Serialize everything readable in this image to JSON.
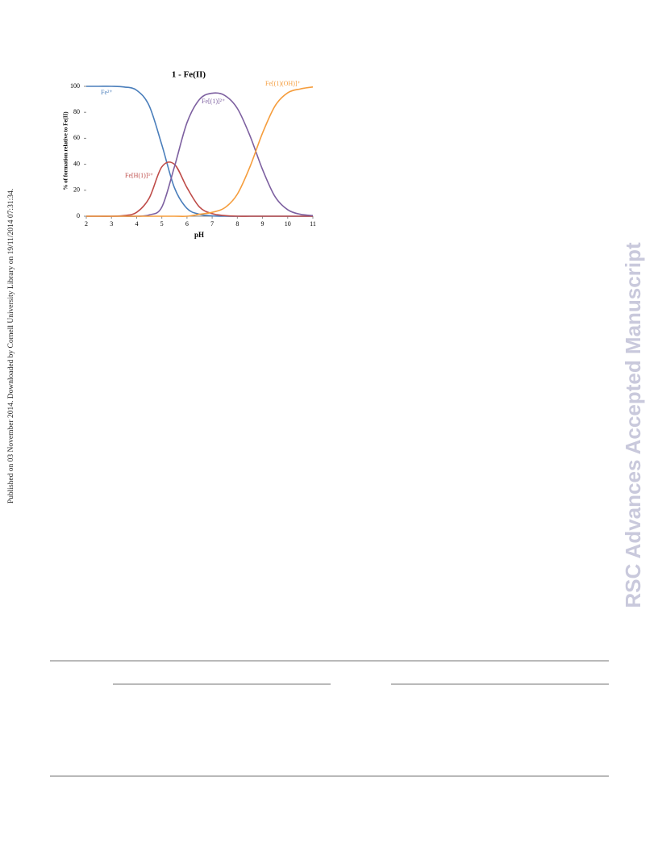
{
  "margin_note": "Published on 03 November 2014. Downloaded by Cornell University Library on 19/11/2014 07:31:34.",
  "watermark": "RSC Advances Accepted Manuscript",
  "chart_data": {
    "type": "line",
    "title": "1 - Fe(II)",
    "x_label": "pH",
    "y_label": "% of formation relative to Fe(II)",
    "x": [
      2,
      2.5,
      3,
      3.5,
      4,
      4.5,
      5,
      5.5,
      6,
      6.5,
      7,
      7.5,
      8,
      8.5,
      9,
      9.5,
      10,
      10.5,
      11
    ],
    "series": [
      {
        "name": "Fe²⁺",
        "color": "#4a7ebb",
        "values": [
          100,
          100,
          100,
          99.5,
          97,
          85,
          55,
          22,
          6,
          1.5,
          0.3,
          0,
          0,
          0,
          0,
          0,
          0,
          0,
          0
        ]
      },
      {
        "name": "Fe[H(1)]³⁺",
        "color": "#be4b48",
        "values": [
          0,
          0,
          0,
          0.5,
          3,
          14,
          38,
          40,
          22,
          7,
          2,
          0.5,
          0,
          0,
          0,
          0,
          0,
          0,
          0
        ]
      },
      {
        "name": "Fe[(1)]²⁺",
        "color": "#7d60a0",
        "values": [
          0,
          0,
          0,
          0,
          0,
          1,
          7,
          38,
          72,
          90,
          94.7,
          93,
          83,
          62,
          36,
          15,
          5,
          1.5,
          0.5
        ]
      },
      {
        "name": "Fe[(1)(OH)]⁺",
        "color": "#f59d3d",
        "values": [
          0,
          0,
          0,
          0,
          0,
          0,
          0,
          0,
          0,
          1.5,
          3,
          6.5,
          17,
          38,
          64,
          85,
          95,
          98,
          99.5
        ]
      }
    ],
    "xlim": [
      2,
      11
    ],
    "xticks": [
      2,
      3,
      4,
      5,
      6,
      7,
      8,
      9,
      10,
      11
    ],
    "ylim": [
      0,
      100
    ],
    "yticks": [
      0,
      20,
      40,
      60,
      80,
      100
    ],
    "grid": false
  }
}
